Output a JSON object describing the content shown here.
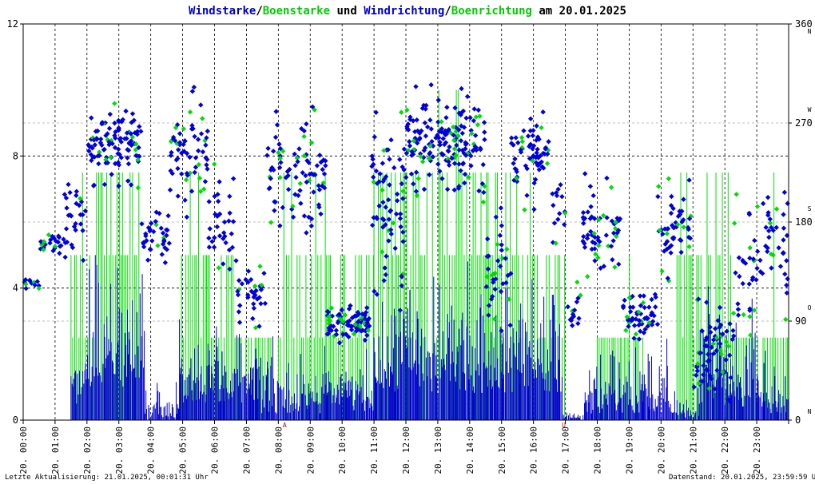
{
  "title": {
    "part1": "Windstarke",
    "sep1": "/",
    "part2": "Boenstarke",
    "mid": " und ",
    "part3": "Windrichtung",
    "sep2": "/",
    "part4": "Boenrichtung",
    "end": " am 20.01.2025"
  },
  "footer": {
    "left": "Letzte Aktualisierung: 21.01.2025, 00:01:31 Uhr",
    "right": "Datenstand: 20.01.2025, 23:59:59 Uhr"
  },
  "colors": {
    "windstarke": "#0000cc",
    "boenstarke": "#00e000",
    "windrichtung": "#0000dd",
    "boenrichtung": "#00dd00",
    "title_black": "#000000",
    "marker": "#cc0000"
  },
  "chart_data": {
    "type": "scatter",
    "x_tick_labels": [
      "20. 00:00",
      "20. 01:00",
      "20. 02:00",
      "20. 03:00",
      "20. 04:00",
      "20. 05:00",
      "20. 06:00",
      "20. 07:00",
      "20. 08:00",
      "20. 09:00",
      "20. 10:00",
      "20. 11:00",
      "20. 12:00",
      "20. 13:00",
      "20. 14:00",
      "20. 15:00",
      "20. 16:00",
      "20. 17:00",
      "20. 18:00",
      "20. 19:00",
      "20. 20:00",
      "20. 21:00",
      "20. 22:00",
      "20. 23:00"
    ],
    "xlim": [
      0,
      24
    ],
    "y_left": {
      "ticks": [
        "0",
        "4",
        "8",
        "12"
      ],
      "ylim": [
        0,
        12
      ]
    },
    "y_right": {
      "ticks": [
        "0",
        "90",
        "180",
        "270",
        "360"
      ],
      "ylim": [
        0,
        360
      ]
    },
    "direction_labels": [
      "N",
      "O",
      "S",
      "W",
      "N"
    ],
    "event_markers": [
      {
        "hour": 8.2,
        "label": "A"
      },
      {
        "hour": 16.95,
        "label": "U"
      }
    ],
    "series": [
      {
        "name": "Windstarke",
        "role": "speed",
        "color": "#0000cc"
      },
      {
        "name": "Boenstarke",
        "role": "gust",
        "color": "#00e000"
      },
      {
        "name": "Windrichtung",
        "role": "direction",
        "color": "#0000dd"
      },
      {
        "name": "Boenrichtung",
        "role": "gust-direction",
        "color": "#00dd00"
      }
    ],
    "direction_clusters": [
      {
        "from": 0.0,
        "to": 0.5,
        "center": 125,
        "spread": 6,
        "density": 8
      },
      {
        "from": 0.5,
        "to": 1.3,
        "center": 160,
        "spread": 12,
        "density": 10
      },
      {
        "from": 1.3,
        "to": 2.0,
        "center": 185,
        "spread": 45,
        "density": 14
      },
      {
        "from": 2.0,
        "to": 3.7,
        "center": 250,
        "spread": 35,
        "density": 22
      },
      {
        "from": 3.7,
        "to": 4.6,
        "center": 165,
        "spread": 25,
        "density": 14
      },
      {
        "from": 4.6,
        "to": 5.8,
        "center": 240,
        "spread": 50,
        "density": 18
      },
      {
        "from": 5.8,
        "to": 6.6,
        "center": 180,
        "spread": 60,
        "density": 14
      },
      {
        "from": 6.6,
        "to": 7.6,
        "center": 110,
        "spread": 35,
        "density": 12
      },
      {
        "from": 7.6,
        "to": 9.5,
        "center": 225,
        "spread": 60,
        "density": 16
      },
      {
        "from": 9.5,
        "to": 10.9,
        "center": 90,
        "spread": 18,
        "density": 22
      },
      {
        "from": 10.9,
        "to": 12.0,
        "center": 200,
        "spread": 90,
        "density": 22
      },
      {
        "from": 12.0,
        "to": 14.5,
        "center": 250,
        "spread": 45,
        "density": 24
      },
      {
        "from": 14.5,
        "to": 15.3,
        "center": 130,
        "spread": 55,
        "density": 16
      },
      {
        "from": 15.3,
        "to": 16.5,
        "center": 240,
        "spread": 40,
        "density": 20
      },
      {
        "from": 16.5,
        "to": 17.0,
        "center": 190,
        "spread": 30,
        "density": 10
      },
      {
        "from": 17.0,
        "to": 17.5,
        "center": 100,
        "spread": 20,
        "density": 10
      },
      {
        "from": 17.5,
        "to": 18.8,
        "center": 175,
        "spread": 45,
        "density": 16
      },
      {
        "from": 18.8,
        "to": 19.9,
        "center": 95,
        "spread": 25,
        "density": 18
      },
      {
        "from": 19.9,
        "to": 21.0,
        "center": 175,
        "spread": 40,
        "density": 16
      },
      {
        "from": 21.0,
        "to": 22.3,
        "center": 60,
        "spread": 45,
        "density": 18
      },
      {
        "from": 22.3,
        "to": 23.0,
        "center": 130,
        "spread": 60,
        "density": 14
      },
      {
        "from": 23.0,
        "to": 24.0,
        "center": 160,
        "spread": 55,
        "density": 14
      }
    ],
    "speed_profile": [
      {
        "from": 0.0,
        "to": 1.5,
        "base": 0,
        "peak": 0
      },
      {
        "from": 1.5,
        "to": 2.0,
        "base": 0.5,
        "peak": 2.0
      },
      {
        "from": 2.0,
        "to": 3.8,
        "base": 1.0,
        "peak": 4.5
      },
      {
        "from": 3.8,
        "to": 4.9,
        "base": 0,
        "peak": 1.0
      },
      {
        "from": 4.9,
        "to": 7.3,
        "base": 0.5,
        "peak": 2.5
      },
      {
        "from": 7.3,
        "to": 11.0,
        "base": 0.2,
        "peak": 2.0
      },
      {
        "from": 11.0,
        "to": 16.9,
        "base": 0.8,
        "peak": 4.0
      },
      {
        "from": 16.9,
        "to": 17.6,
        "base": 0,
        "peak": 0.3
      },
      {
        "from": 17.6,
        "to": 20.3,
        "base": 0.2,
        "peak": 2.2
      },
      {
        "from": 20.3,
        "to": 21.2,
        "base": 0,
        "peak": 0.8
      },
      {
        "from": 21.2,
        "to": 23.0,
        "base": 0.4,
        "peak": 3.5
      },
      {
        "from": 23.0,
        "to": 24.0,
        "base": 0.2,
        "peak": 1.5
      }
    ],
    "gust_levels": [
      0,
      2.5,
      5,
      7.5
    ],
    "gust_profile": [
      {
        "from": 1.5,
        "to": 2.3,
        "level": 5
      },
      {
        "from": 2.3,
        "to": 3.7,
        "level": 7.5
      },
      {
        "from": 3.7,
        "to": 4.9,
        "level": 0
      },
      {
        "from": 4.9,
        "to": 6.7,
        "level": 5
      },
      {
        "from": 6.7,
        "to": 8.0,
        "level": 2.5
      },
      {
        "from": 8.0,
        "to": 11.0,
        "level": 5
      },
      {
        "from": 11.0,
        "to": 14.6,
        "level": 7.5
      },
      {
        "from": 14.6,
        "to": 17.0,
        "level": 5
      },
      {
        "from": 17.0,
        "to": 18.0,
        "level": 0
      },
      {
        "from": 18.0,
        "to": 19.5,
        "level": 2.5
      },
      {
        "from": 19.5,
        "to": 20.5,
        "level": 0
      },
      {
        "from": 20.5,
        "to": 22.3,
        "level": 5
      },
      {
        "from": 22.3,
        "to": 24.0,
        "level": 2.5
      }
    ]
  }
}
